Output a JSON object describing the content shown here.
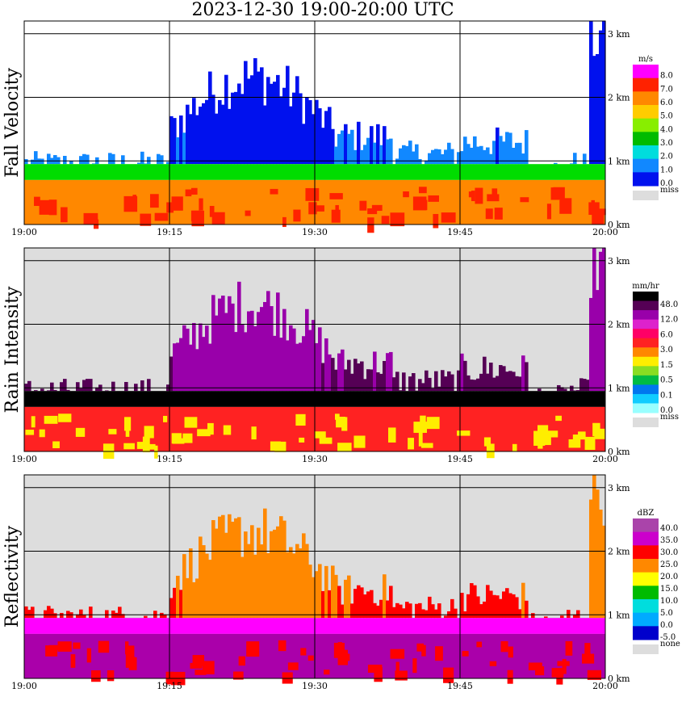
{
  "title": "2023-12-30   19:00-20:00 UTC",
  "chart_data": [
    {
      "type": "heatmap",
      "ylabel": "Fall Velocity",
      "x_ticks": [
        "19:00",
        "19:15",
        "19:30",
        "19:45",
        "20:00"
      ],
      "y_ticks": [
        "0 km",
        "1 km",
        "2 km",
        "3 km"
      ],
      "xlim": [
        "19:00",
        "20:00"
      ],
      "ylim_km": [
        0,
        3.2
      ],
      "grid": true,
      "legend_position": "right",
      "legend": {
        "unit": "m/s",
        "levels": [
          "8.0",
          "7.0",
          "6.0",
          "5.0",
          "4.0",
          "3.0",
          "2.0",
          "1.0",
          "0.0",
          "miss"
        ],
        "colors": [
          "#ff00ff",
          "#ff2200",
          "#ff8800",
          "#ffcc00",
          "#88ee00",
          "#00bb00",
          "#00dddd",
          "#1188ff",
          "#0011ee",
          "#dddddd"
        ]
      },
      "colors": {
        "background": "#ffffff",
        "low_band": "#ff8800",
        "melting_band": "#00dd00"
      }
    },
    {
      "type": "heatmap",
      "ylabel": "Rain Intensity",
      "x_ticks": [
        "19:00",
        "19:15",
        "19:30",
        "19:45",
        "20:00"
      ],
      "y_ticks": [
        "0 km",
        "1 km",
        "2 km",
        "3 km"
      ],
      "xlim": [
        "19:00",
        "20:00"
      ],
      "ylim_km": [
        0,
        3.2
      ],
      "grid": true,
      "legend_position": "right",
      "legend": {
        "unit": "mm/hr",
        "levels": [
          "48.0",
          "12.0",
          "6.0",
          "3.0",
          "1.5",
          "0.5",
          "0.1",
          "0.0",
          "miss"
        ],
        "colors": [
          "#000000",
          "#550055",
          "#9900aa",
          "#dd22cc",
          "#ff0066",
          "#ff2222",
          "#ff8800",
          "#ffee00",
          "#88dd22",
          "#00bb44",
          "#0077ee",
          "#11ccff",
          "#99ffff",
          "#dddddd"
        ]
      },
      "colors": {
        "background": "#dddddd",
        "low_band": "#ff2222",
        "melting_band": "#000000"
      }
    },
    {
      "type": "heatmap",
      "ylabel": "Reflectivity",
      "x_ticks": [
        "19:00",
        "19:15",
        "19:30",
        "19:45",
        "20:00"
      ],
      "y_ticks": [
        "0 km",
        "1 km",
        "2 km",
        "3 km"
      ],
      "xlim": [
        "19:00",
        "20:00"
      ],
      "ylim_km": [
        0,
        3.2
      ],
      "grid": true,
      "legend_position": "right",
      "legend": {
        "unit": "dBZ",
        "levels": [
          "40.0",
          "35.0",
          "30.0",
          "25.0",
          "20.0",
          "15.0",
          "10.0",
          "5.0",
          "0.0",
          "-5.0",
          "none"
        ],
        "colors": [
          "#aa44aa",
          "#cc00cc",
          "#ff0000",
          "#ff8800",
          "#ffff00",
          "#00bb00",
          "#00dddd",
          "#00aaff",
          "#0000cc",
          "#dddddd"
        ]
      },
      "colors": {
        "background": "#dddddd",
        "low_band": "#aa00aa",
        "melting_band": "#ff00ff"
      }
    }
  ]
}
